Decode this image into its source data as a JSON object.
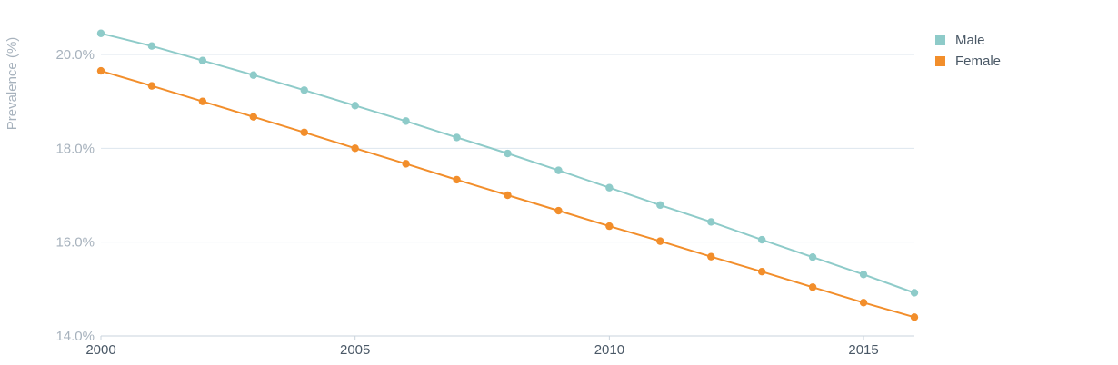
{
  "chart_data": {
    "type": "line",
    "ylabel": "Prevalence (%)",
    "x": [
      2000,
      2001,
      2002,
      2003,
      2004,
      2005,
      2006,
      2007,
      2008,
      2009,
      2010,
      2011,
      2012,
      2013,
      2014,
      2015,
      2016
    ],
    "x_ticks": [
      "2000",
      "2005",
      "2010",
      "2015"
    ],
    "y_ticks": [
      "14.0%",
      "16.0%",
      "18.0%",
      "20.0%"
    ],
    "ylim": [
      14.0,
      20.0
    ],
    "grid": true,
    "legend_position": "top-right",
    "series": [
      {
        "name": "Male",
        "color": "#8ecbc9",
        "values": [
          20.45,
          20.18,
          19.87,
          19.56,
          19.24,
          18.91,
          18.58,
          18.23,
          17.89,
          17.53,
          17.16,
          16.79,
          16.43,
          16.05,
          15.68,
          15.31,
          14.92
        ]
      },
      {
        "name": "Female",
        "color": "#f28e2b",
        "values": [
          19.65,
          19.33,
          19.0,
          18.67,
          18.34,
          18.0,
          17.67,
          17.33,
          17.0,
          16.67,
          16.34,
          16.02,
          15.69,
          15.37,
          15.04,
          14.71,
          14.4
        ]
      }
    ]
  }
}
